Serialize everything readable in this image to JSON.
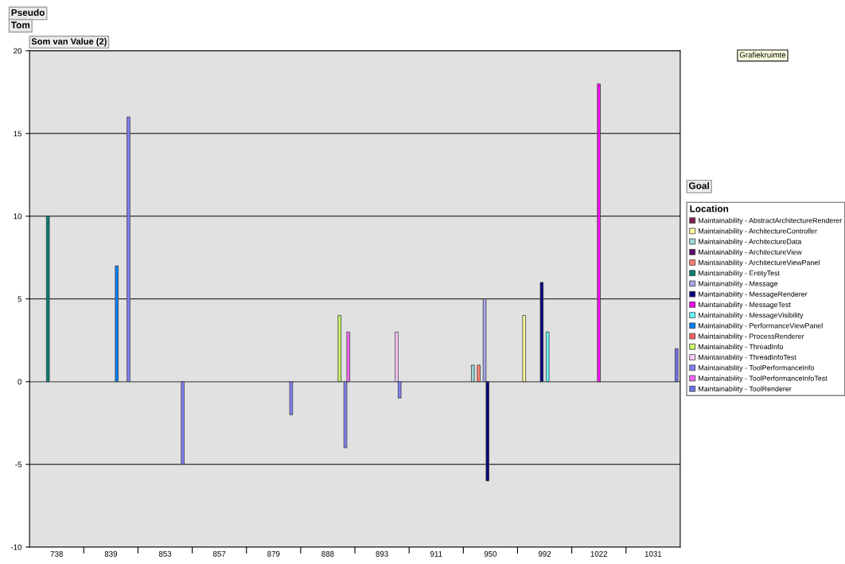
{
  "chart_data": {
    "type": "bar",
    "ylabel": "Som van Value (2)",
    "legend_title": "Location",
    "annotations": [
      "Pseudo",
      "Tom",
      "Goal",
      "Grafiekruimte"
    ],
    "categories": [
      "738",
      "839",
      "853",
      "857",
      "879",
      "888",
      "893",
      "911",
      "950",
      "992",
      "1022",
      "1031"
    ],
    "series": [
      {
        "name": "Maintainability - AbstractArchitectureRenderer",
        "color": "#7f1f4f",
        "values": [
          null,
          null,
          null,
          null,
          null,
          null,
          null,
          null,
          null,
          null,
          null,
          null
        ]
      },
      {
        "name": "Maintainability - ArchitectureController",
        "color": "#ffff99",
        "values": [
          null,
          null,
          null,
          null,
          null,
          null,
          null,
          null,
          null,
          4,
          null,
          null
        ]
      },
      {
        "name": "Maintainability - ArchitectureData",
        "color": "#99d8d8",
        "values": [
          null,
          null,
          null,
          null,
          null,
          null,
          null,
          null,
          1,
          null,
          null,
          null
        ]
      },
      {
        "name": "Maintainability - ArchitectureView",
        "color": "#5a0a6e",
        "values": [
          null,
          null,
          null,
          null,
          null,
          null,
          null,
          null,
          null,
          null,
          null,
          null
        ]
      },
      {
        "name": "Maintainability - ArchitectureViewPanel",
        "color": "#ff8070",
        "values": [
          null,
          null,
          null,
          null,
          null,
          null,
          null,
          null,
          1,
          null,
          null,
          null
        ]
      },
      {
        "name": "Maintainability - EntityTest",
        "color": "#007f70",
        "values": [
          10,
          null,
          null,
          null,
          null,
          null,
          null,
          null,
          null,
          null,
          null,
          null
        ]
      },
      {
        "name": "Maintainability - Message",
        "color": "#a6a6f0",
        "values": [
          null,
          null,
          null,
          null,
          null,
          null,
          null,
          null,
          5,
          null,
          null,
          null
        ]
      },
      {
        "name": "Maintainability - MessageRenderer",
        "color": "#00007f",
        "values": [
          null,
          null,
          null,
          null,
          null,
          null,
          null,
          null,
          -6,
          6,
          null,
          null
        ]
      },
      {
        "name": "Maintainability - MessageTest",
        "color": "#ff00ff",
        "values": [
          null,
          null,
          null,
          null,
          null,
          null,
          null,
          null,
          null,
          null,
          18,
          null
        ]
      },
      {
        "name": "Maintainability - MessageVisibility",
        "color": "#66ffff",
        "values": [
          null,
          null,
          null,
          null,
          null,
          null,
          null,
          null,
          null,
          3,
          null,
          null
        ]
      },
      {
        "name": "Maintainability - PerformanceViewPanel",
        "color": "#0080ff",
        "values": [
          null,
          7,
          null,
          null,
          null,
          null,
          null,
          null,
          null,
          null,
          null,
          null
        ]
      },
      {
        "name": "Maintainability - ProcessRenderer",
        "color": "#ff6666",
        "values": [
          null,
          null,
          null,
          null,
          null,
          null,
          null,
          null,
          null,
          null,
          null,
          null
        ]
      },
      {
        "name": "Maintainability - ThreadInfo",
        "color": "#ccff66",
        "values": [
          null,
          null,
          null,
          null,
          null,
          4,
          null,
          null,
          null,
          null,
          null,
          null
        ]
      },
      {
        "name": "Maintainability - ThreadInfoTest",
        "color": "#ffccff",
        "values": [
          null,
          null,
          null,
          null,
          null,
          null,
          3,
          null,
          null,
          null,
          null,
          null
        ]
      },
      {
        "name": "Maintainability - ToolPerformanceInfo",
        "color": "#8080ff",
        "values": [
          null,
          16,
          -5,
          null,
          -2,
          -4,
          -1,
          null,
          null,
          null,
          null,
          null
        ]
      },
      {
        "name": "Maintainability - ToolPerformanceInfoTest",
        "color": "#ff66ff",
        "values": [
          null,
          null,
          null,
          null,
          null,
          3,
          null,
          null,
          null,
          null,
          null,
          null
        ]
      },
      {
        "name": "Maintainability - ToolRenderer",
        "color": "#6f6fee",
        "values": [
          null,
          null,
          null,
          null,
          null,
          null,
          null,
          null,
          null,
          null,
          null,
          2
        ]
      }
    ],
    "ylim": [
      -10,
      20
    ],
    "yticks": [
      -10,
      -5,
      0,
      5,
      10,
      15,
      20
    ],
    "grid": "y",
    "legend": "right"
  }
}
